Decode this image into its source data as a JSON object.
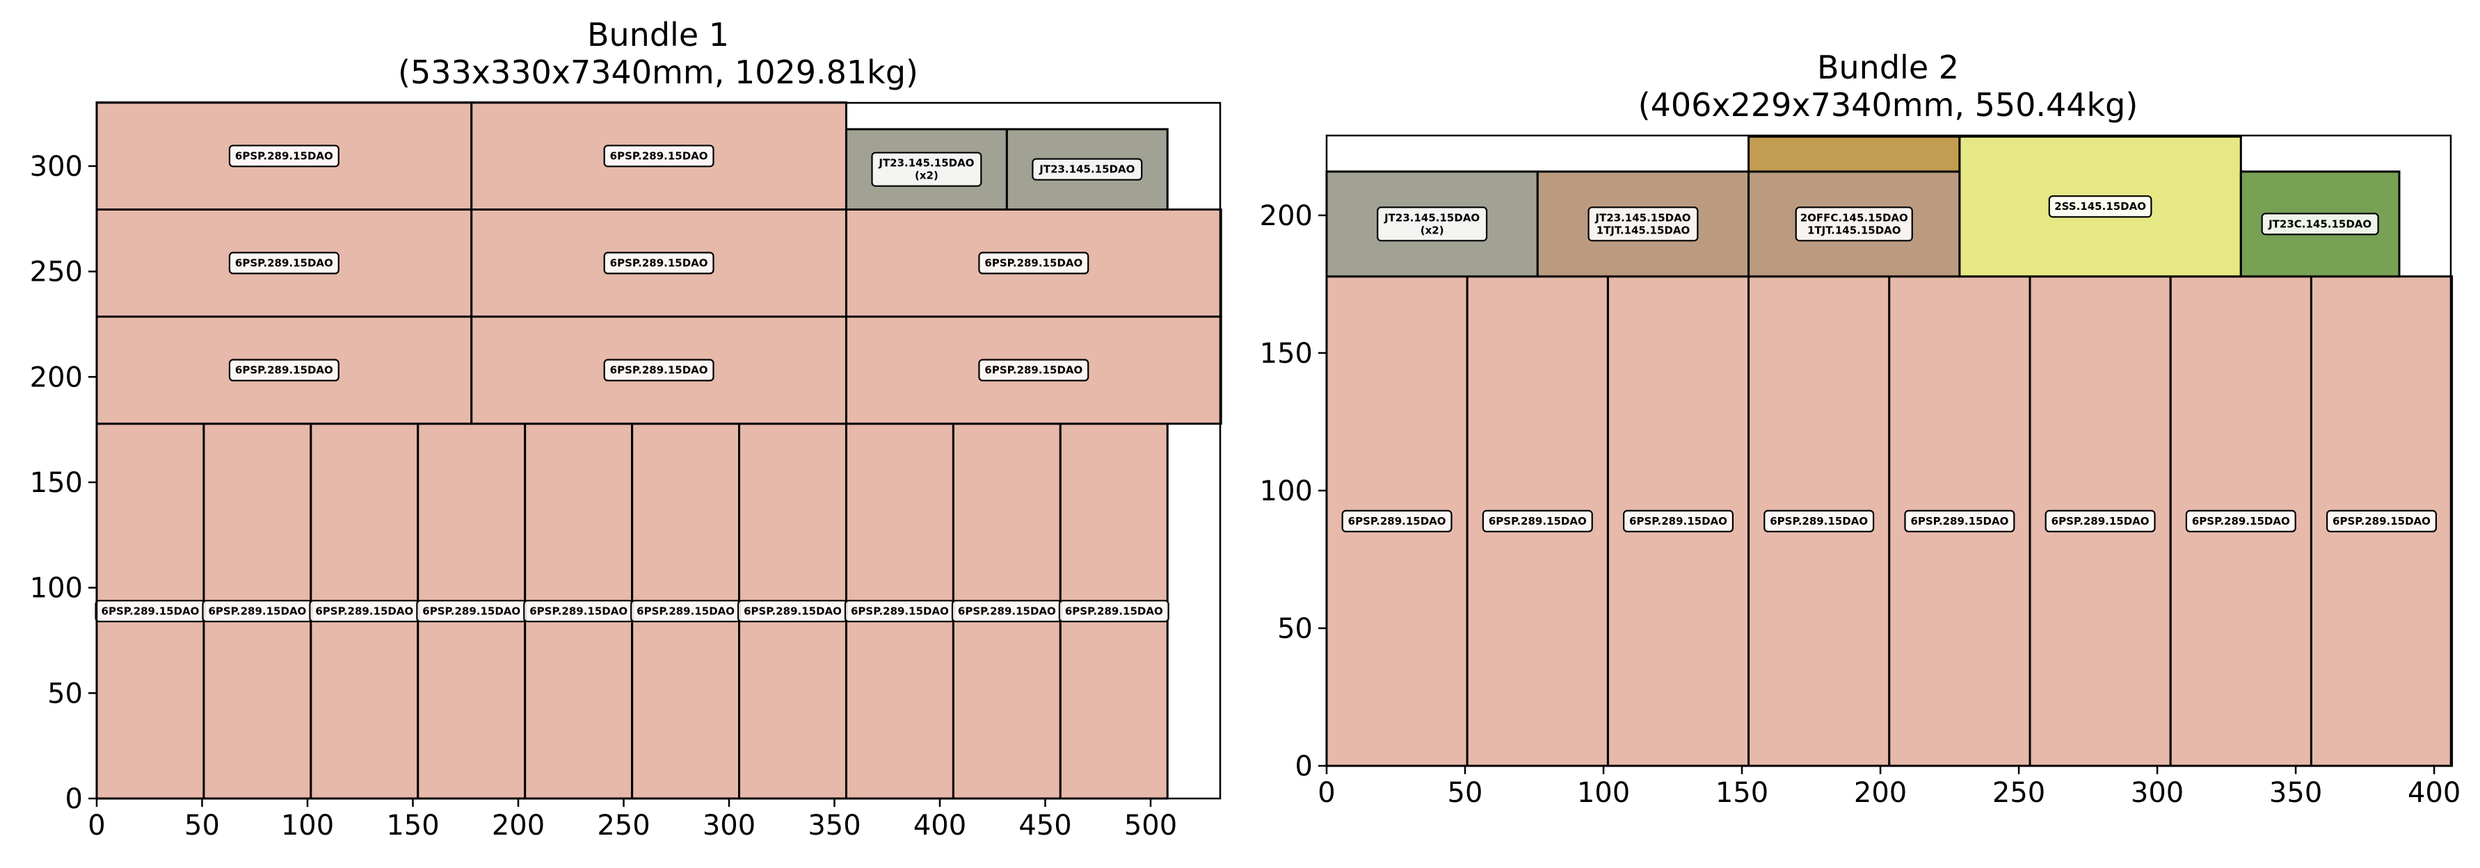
{
  "chart_data": [
    {
      "type": "rect-packing",
      "title": "Bundle 1",
      "subtitle": "(533x330x7340mm, 1029.81kg)",
      "xlim": [
        0,
        533
      ],
      "ylim": [
        0,
        330
      ],
      "xticks": [
        0,
        50,
        100,
        150,
        200,
        250,
        300,
        350,
        400,
        450,
        500
      ],
      "yticks": [
        0,
        50,
        100,
        150,
        200,
        250,
        300
      ],
      "rects": [
        {
          "x": 0,
          "y": 0,
          "w": 50.8,
          "h": 177.8,
          "label": [
            "6PSP.289.15DAO"
          ],
          "color": "#e6b9aa"
        },
        {
          "x": 50.8,
          "y": 0,
          "w": 50.8,
          "h": 177.8,
          "label": [
            "6PSP.289.15DAO"
          ],
          "color": "#e6b9aa"
        },
        {
          "x": 101.6,
          "y": 0,
          "w": 50.8,
          "h": 177.8,
          "label": [
            "6PSP.289.15DAO"
          ],
          "color": "#e6b9aa"
        },
        {
          "x": 152.4,
          "y": 0,
          "w": 50.8,
          "h": 177.8,
          "label": [
            "6PSP.289.15DAO"
          ],
          "color": "#e6b9aa"
        },
        {
          "x": 203.2,
          "y": 0,
          "w": 50.8,
          "h": 177.8,
          "label": [
            "6PSP.289.15DAO"
          ],
          "color": "#e6b9aa"
        },
        {
          "x": 254,
          "y": 0,
          "w": 50.8,
          "h": 177.8,
          "label": [
            "6PSP.289.15DAO"
          ],
          "color": "#e6b9aa"
        },
        {
          "x": 304.8,
          "y": 0,
          "w": 50.8,
          "h": 177.8,
          "label": [
            "6PSP.289.15DAO"
          ],
          "color": "#e6b9aa"
        },
        {
          "x": 355.6,
          "y": 0,
          "w": 50.8,
          "h": 177.8,
          "label": [
            "6PSP.289.15DAO"
          ],
          "color": "#e6b9aa"
        },
        {
          "x": 406.4,
          "y": 0,
          "w": 50.8,
          "h": 177.8,
          "label": [
            "6PSP.289.15DAO"
          ],
          "color": "#e6b9aa"
        },
        {
          "x": 457.2,
          "y": 0,
          "w": 50.8,
          "h": 177.8,
          "label": [
            "6PSP.289.15DAO"
          ],
          "color": "#e6b9aa"
        },
        {
          "x": 0,
          "y": 177.8,
          "w": 177.8,
          "h": 50.8,
          "label": [
            "6PSP.289.15DAO"
          ],
          "color": "#e6b9aa"
        },
        {
          "x": 177.8,
          "y": 177.8,
          "w": 177.8,
          "h": 50.8,
          "label": [
            "6PSP.289.15DAO"
          ],
          "color": "#e6b9aa"
        },
        {
          "x": 355.6,
          "y": 177.8,
          "w": 177.8,
          "h": 50.8,
          "label": [
            "6PSP.289.15DAO"
          ],
          "color": "#e6b9aa"
        },
        {
          "x": 0,
          "y": 228.6,
          "w": 177.8,
          "h": 50.8,
          "label": [
            "6PSP.289.15DAO"
          ],
          "color": "#e6b9aa"
        },
        {
          "x": 177.8,
          "y": 228.6,
          "w": 177.8,
          "h": 50.8,
          "label": [
            "6PSP.289.15DAO"
          ],
          "color": "#e6b9aa"
        },
        {
          "x": 355.6,
          "y": 228.6,
          "w": 177.8,
          "h": 50.8,
          "label": [
            "6PSP.289.15DAO"
          ],
          "color": "#e6b9aa"
        },
        {
          "x": 0,
          "y": 279.4,
          "w": 177.8,
          "h": 50.8,
          "label": [
            "6PSP.289.15DAO"
          ],
          "color": "#e6b9aa"
        },
        {
          "x": 177.8,
          "y": 279.4,
          "w": 177.8,
          "h": 50.8,
          "label": [
            "6PSP.289.15DAO"
          ],
          "color": "#e6b9aa"
        },
        {
          "x": 355.6,
          "y": 279.4,
          "w": 76.2,
          "h": 38.1,
          "label": [
            "JT23.145.15DAO",
            "(x2)"
          ],
          "color": "#a1a194"
        },
        {
          "x": 431.8,
          "y": 279.4,
          "w": 76.2,
          "h": 38.1,
          "label": [
            "JT23.145.15DAO"
          ],
          "color": "#a1a194"
        }
      ]
    },
    {
      "type": "rect-packing",
      "title": "Bundle 2",
      "subtitle": "(406x229x7340mm, 550.44kg)",
      "xlim": [
        0,
        406
      ],
      "ylim": [
        0,
        229
      ],
      "xticks": [
        0,
        50,
        100,
        150,
        200,
        250,
        300,
        350,
        400
      ],
      "yticks": [
        0,
        50,
        100,
        150,
        200
      ],
      "rects": [
        {
          "x": 0,
          "y": 0,
          "w": 50.8,
          "h": 177.8,
          "label": [
            "6PSP.289.15DAO"
          ],
          "color": "#e6b9aa"
        },
        {
          "x": 50.8,
          "y": 0,
          "w": 50.8,
          "h": 177.8,
          "label": [
            "6PSP.289.15DAO"
          ],
          "color": "#e6b9aa"
        },
        {
          "x": 101.6,
          "y": 0,
          "w": 50.8,
          "h": 177.8,
          "label": [
            "6PSP.289.15DAO"
          ],
          "color": "#e6b9aa"
        },
        {
          "x": 152.4,
          "y": 0,
          "w": 50.8,
          "h": 177.8,
          "label": [
            "6PSP.289.15DAO"
          ],
          "color": "#e6b9aa"
        },
        {
          "x": 203.2,
          "y": 0,
          "w": 50.8,
          "h": 177.8,
          "label": [
            "6PSP.289.15DAO"
          ],
          "color": "#e6b9aa"
        },
        {
          "x": 254,
          "y": 0,
          "w": 50.8,
          "h": 177.8,
          "label": [
            "6PSP.289.15DAO"
          ],
          "color": "#e6b9aa"
        },
        {
          "x": 304.8,
          "y": 0,
          "w": 50.8,
          "h": 177.8,
          "label": [
            "6PSP.289.15DAO"
          ],
          "color": "#e6b9aa"
        },
        {
          "x": 355.6,
          "y": 0,
          "w": 50.8,
          "h": 177.8,
          "label": [
            "6PSP.289.15DAO"
          ],
          "color": "#e6b9aa"
        },
        {
          "x": 0,
          "y": 177.8,
          "w": 76.2,
          "h": 38.1,
          "label": [
            "JT23.145.15DAO",
            "(x2)"
          ],
          "color": "#a1a194"
        },
        {
          "x": 76.2,
          "y": 177.8,
          "w": 76.2,
          "h": 38.1,
          "label": [
            "JT23.145.15DAO",
            "1TJT.145.15DAO"
          ],
          "color": "#bb9b7f"
        },
        {
          "x": 152.4,
          "y": 177.8,
          "w": 76.2,
          "h": 38.1,
          "label": [
            "2OFFC.145.15DAO",
            "1TJT.145.15DAO"
          ],
          "color": "#bb9b7f"
        },
        {
          "x": 152.4,
          "y": 215.9,
          "w": 76.2,
          "h": 12.7,
          "label": [],
          "color": "#c29c50"
        },
        {
          "x": 228.6,
          "y": 177.8,
          "w": 101.6,
          "h": 50.8,
          "label": [
            "2SS.145.15DAO"
          ],
          "color": "#e6e885"
        },
        {
          "x": 330.2,
          "y": 177.8,
          "w": 57.2,
          "h": 38.1,
          "label": [
            "JT23C.145.15DAO"
          ],
          "color": "#77a154"
        }
      ]
    }
  ]
}
